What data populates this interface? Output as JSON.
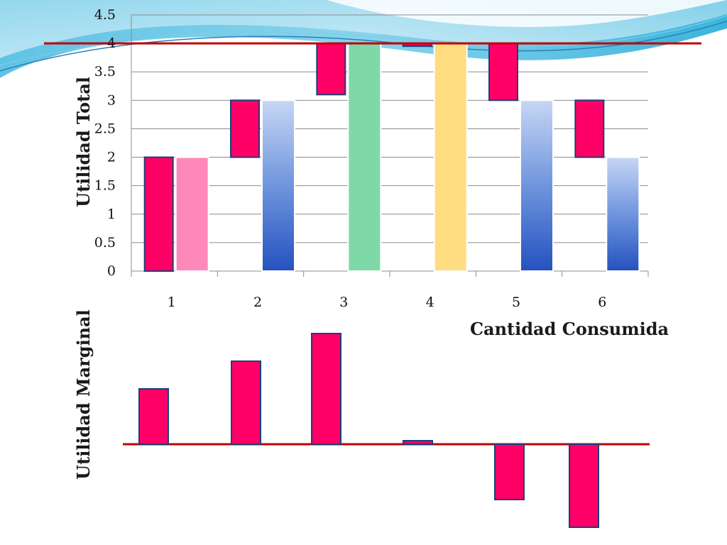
{
  "chart_data": [
    {
      "type": "bar",
      "ylabel": "Utilidad Total",
      "xlabel": "Cantidad Consumida",
      "categories": [
        "1",
        "2",
        "3",
        "4",
        "5",
        "6"
      ],
      "y_ticks": [
        "0",
        "0.5",
        "1",
        "1.5",
        "2",
        "2.5",
        "3",
        "3.5",
        "4",
        "4.5"
      ],
      "ylim": [
        0,
        4.5
      ],
      "grid": true,
      "total_values": [
        2,
        3,
        4,
        4,
        3,
        2
      ],
      "total_bar_colors": [
        "#ff88bb",
        "#3a6fd0",
        "#7fd8a8",
        "#ffdc80",
        "#3a6fd0",
        "#3a6fd0"
      ],
      "increment_bars": [
        {
          "from": 0,
          "to": 2
        },
        {
          "from": 2,
          "to": 3
        },
        {
          "from": 3.1,
          "to": 4
        },
        {
          "from": 3.95,
          "to": 4
        },
        {
          "from": 3,
          "to": 4
        },
        {
          "from": 2,
          "to": 3
        }
      ],
      "reference_line": 4
    },
    {
      "type": "bar",
      "ylabel": "Utilidad Marginal",
      "categories": [
        "1",
        "2",
        "3",
        "4",
        "5",
        "6"
      ],
      "values": [
        2,
        3,
        4,
        0.1,
        -2,
        -3
      ],
      "baseline": 0
    }
  ],
  "colors": {
    "increment_fill": "#ff0066",
    "increment_stroke": "#1f3e7a",
    "reference_line": "#c00000",
    "grid": "#8c8c8c"
  }
}
